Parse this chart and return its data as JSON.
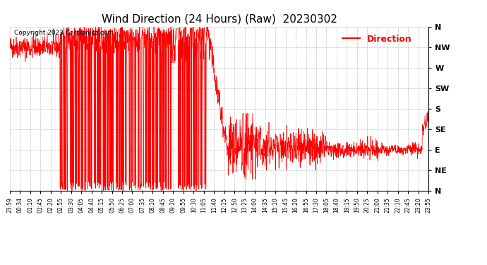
{
  "title": "Wind Direction (24 Hours) (Raw)  20230302",
  "copyright": "Copyright 2023 Cartronics.com",
  "legend_label": "Direction",
  "legend_color": "#ff0000",
  "line_color": "#ff0000",
  "background_color": "#ffffff",
  "grid_color": "#b0b0b0",
  "ylabel_labels": [
    "N",
    "NW",
    "W",
    "SW",
    "S",
    "SE",
    "E",
    "NE",
    "N"
  ],
  "ylabel_values": [
    360,
    315,
    270,
    225,
    180,
    135,
    90,
    45,
    0
  ],
  "ylim": [
    0,
    360
  ],
  "x_tick_labels": [
    "23:59",
    "00:34",
    "01:10",
    "01:45",
    "02:20",
    "02:55",
    "03:30",
    "04:05",
    "04:40",
    "05:15",
    "05:50",
    "06:25",
    "07:00",
    "07:35",
    "08:10",
    "08:45",
    "09:20",
    "09:55",
    "10:30",
    "11:05",
    "11:40",
    "12:15",
    "12:50",
    "13:25",
    "14:00",
    "14:35",
    "15:10",
    "15:45",
    "16:20",
    "16:55",
    "17:30",
    "18:05",
    "18:40",
    "19:15",
    "19:50",
    "20:25",
    "21:00",
    "21:35",
    "22:10",
    "22:45",
    "23:20",
    "23:55"
  ],
  "title_fontsize": 11,
  "copyright_fontsize": 6.5,
  "tick_fontsize": 5.5,
  "ylabel_fontsize": 8,
  "legend_fontsize": 9,
  "figsize": [
    6.9,
    3.75
  ],
  "dpi": 100
}
